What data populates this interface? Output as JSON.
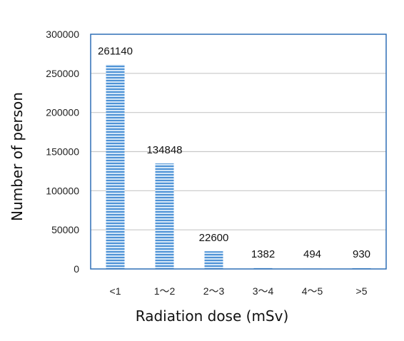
{
  "chart_data": {
    "type": "bar",
    "xlabel": "Radiation dose (mSv)",
    "ylabel": "Number of person",
    "categories": [
      "<1",
      "1～2",
      "2～3",
      "3～4",
      "4～5",
      ">5"
    ],
    "values": [
      261140,
      134848,
      22600,
      1382,
      494,
      930
    ],
    "data_labels": [
      "261140",
      "134848",
      "22600",
      "1382",
      "494",
      "930"
    ],
    "ylim": [
      0,
      300000
    ],
    "yticks": [
      0,
      50000,
      100000,
      150000,
      200000,
      250000,
      300000
    ],
    "ytick_labels": [
      "0",
      "50000",
      "100000",
      "150000",
      "200000",
      "250000",
      "300000"
    ],
    "grid": true,
    "legend": "none",
    "colors": {
      "bar": "#4f93d6",
      "bar_light": "#cfe3f6",
      "frame": "#2e6fb5",
      "grid": "#c8c8c8"
    }
  }
}
